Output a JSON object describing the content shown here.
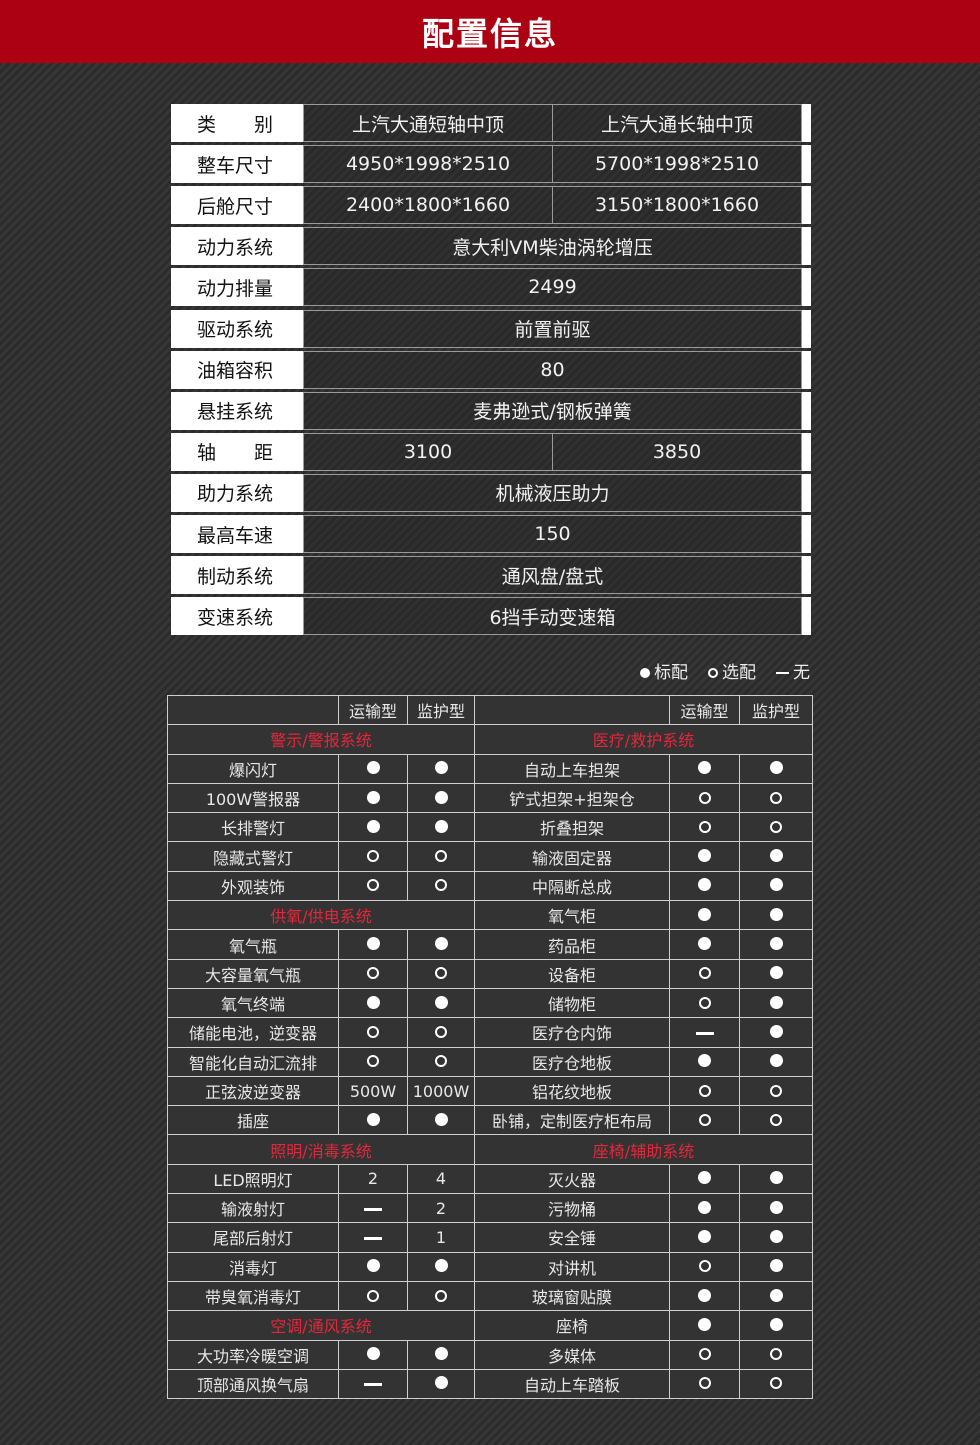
{
  "title": "配置信息",
  "spec_table": [
    {
      "label": "类　　别",
      "values": [
        "上汽大通短轴中顶",
        "上汽大通长轴中顶"
      ]
    },
    {
      "label": "整车尺寸",
      "values": [
        "4950*1998*2510",
        "5700*1998*2510"
      ]
    },
    {
      "label": "后舱尺寸",
      "values": [
        "2400*1800*1660",
        "3150*1800*1660"
      ]
    },
    {
      "label": "动力系统",
      "values": [
        "意大利VM柴油涡轮增压"
      ]
    },
    {
      "label": "动力排量",
      "values": [
        "2499"
      ]
    },
    {
      "label": "驱动系统",
      "values": [
        "前置前驱"
      ]
    },
    {
      "label": "油箱容积",
      "values": [
        "80"
      ]
    },
    {
      "label": "悬挂系统",
      "values": [
        "麦弗逊式/钢板弹簧"
      ]
    },
    {
      "label": "轴　　距",
      "values": [
        "3100",
        "3850"
      ]
    },
    {
      "label": "助力系统",
      "values": [
        "机械液压助力"
      ]
    },
    {
      "label": "最高车速",
      "values": [
        "150"
      ]
    },
    {
      "label": "制动系统",
      "values": [
        "通风盘/盘式"
      ]
    },
    {
      "label": "变速系统",
      "values": [
        "6挡手动变速箱"
      ]
    }
  ],
  "legend": [
    {
      "symbol": "std",
      "label": "标配"
    },
    {
      "symbol": "opt",
      "label": "选配"
    },
    {
      "symbol": "none",
      "label": "无"
    }
  ],
  "config_header": [
    "",
    "运输型",
    "监护型",
    "",
    "运输型",
    "监护型"
  ],
  "accent_color": "#e4273a",
  "config_rows": [
    [
      {
        "section": "警示/警报系统"
      },
      {
        "section": "医疗/救护系统"
      }
    ],
    [
      [
        "爆闪灯",
        "std",
        "std"
      ],
      [
        "自动上车担架",
        "std",
        "std"
      ]
    ],
    [
      [
        "100W警报器",
        "std",
        "std"
      ],
      [
        "铲式担架+担架仓",
        "opt",
        "opt"
      ]
    ],
    [
      [
        "长排警灯",
        "std",
        "std"
      ],
      [
        "折叠担架",
        "opt",
        "opt"
      ]
    ],
    [
      [
        "隐藏式警灯",
        "opt",
        "opt"
      ],
      [
        "输液固定器",
        "std",
        "std"
      ]
    ],
    [
      [
        "外观装饰",
        "opt",
        "opt"
      ],
      [
        "中隔断总成",
        "std",
        "std"
      ]
    ],
    [
      {
        "section": "供氧/供电系统"
      },
      [
        "氧气柜",
        "std",
        "std"
      ]
    ],
    [
      [
        "氧气瓶",
        "std",
        "std"
      ],
      [
        "药品柜",
        "std",
        "std"
      ]
    ],
    [
      [
        "大容量氧气瓶",
        "opt",
        "opt"
      ],
      [
        "设备柜",
        "opt",
        "std"
      ]
    ],
    [
      [
        "氧气终端",
        "std",
        "std"
      ],
      [
        "储物柜",
        "opt",
        "std"
      ]
    ],
    [
      [
        "储能电池，逆变器",
        "opt",
        "opt"
      ],
      [
        "医疗仓内饰",
        "none",
        "std"
      ]
    ],
    [
      [
        "智能化自动汇流排",
        "opt",
        "opt"
      ],
      [
        "医疗仓地板",
        "std",
        "std"
      ]
    ],
    [
      [
        "正弦波逆变器",
        "500W",
        "1000W"
      ],
      [
        "铝花纹地板",
        "opt",
        "opt"
      ]
    ],
    [
      [
        "插座",
        "std",
        "std"
      ],
      [
        "卧铺，定制医疗柜布局",
        "opt",
        "opt"
      ]
    ],
    [
      {
        "section": "照明/消毒系统"
      },
      {
        "section": "座椅/辅助系统"
      }
    ],
    [
      [
        "LED照明灯",
        "2",
        "4"
      ],
      [
        "灭火器",
        "std",
        "std"
      ]
    ],
    [
      [
        "输液射灯",
        "none",
        "2"
      ],
      [
        "污物桶",
        "std",
        "std"
      ]
    ],
    [
      [
        "尾部后射灯",
        "none",
        "1"
      ],
      [
        "安全锤",
        "std",
        "std"
      ]
    ],
    [
      [
        "消毒灯",
        "std",
        "std"
      ],
      [
        "对讲机",
        "opt",
        "std"
      ]
    ],
    [
      [
        "带臭氧消毒灯",
        "opt",
        "opt"
      ],
      [
        "玻璃窗贴膜",
        "std",
        "std"
      ]
    ],
    [
      {
        "section": "空调/通风系统"
      },
      [
        "座椅",
        "std",
        "std"
      ]
    ],
    [
      [
        "大功率冷暖空调",
        "std",
        "std"
      ],
      [
        "多媒体",
        "opt",
        "opt"
      ]
    ],
    [
      [
        "顶部通风换气扇",
        "none",
        "std"
      ],
      [
        "自动上车踏板",
        "opt",
        "opt"
      ]
    ]
  ]
}
